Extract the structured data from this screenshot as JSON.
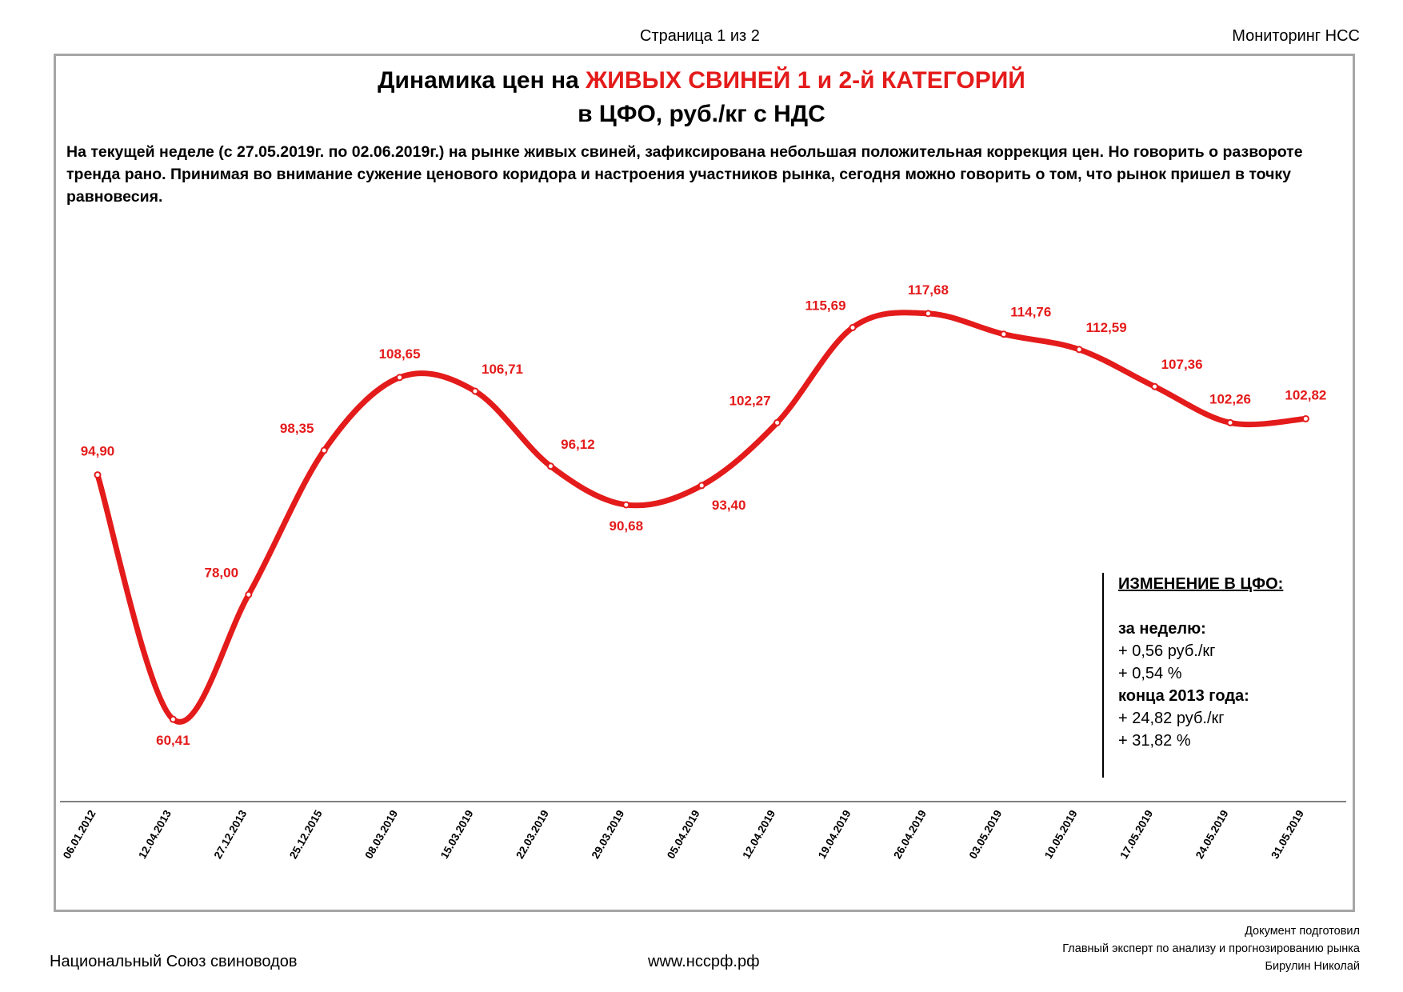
{
  "header": {
    "page_label": "Страница 1 из 2",
    "monitor_label": "Мониторинг НСС"
  },
  "title": {
    "line1_prefix": "Динамика цен на ",
    "line1_highlight": "ЖИВЫХ СВИНЕЙ 1 и 2-й КАТЕГОРИЙ",
    "line2": "в ЦФО, руб./кг с НДС"
  },
  "intro_text": "На текущей неделе (с 27.05.2019г. по 02.06.2019г.) на рынке живых свиней, зафиксирована небольшая положительная коррекция цен. Но говорить о развороте тренда рано. Принимая во внимание сужение ценового коридора и настроения участников рынка, сегодня можно говорить о том, что рынок пришел в точку равновесия.",
  "chart_data": {
    "type": "line",
    "title": "Динамика цен на ЖИВЫХ СВИНЕЙ 1 и 2-й КАТЕГОРИЙ в ЦФО, руб./кг с НДС",
    "xlabel": "",
    "ylabel": "",
    "ylim": [
      55,
      125
    ],
    "grid": false,
    "color": "#e41b1b",
    "categories": [
      "06.01.2012",
      "12.04.2013",
      "27.12.2013",
      "25.12.2015",
      "08.03.2019",
      "15.03.2019",
      "22.03.2019",
      "29.03.2019",
      "05.04.2019",
      "12.04.2019",
      "19.04.2019",
      "26.04.2019",
      "03.05.2019",
      "10.05.2019",
      "17.05.2019",
      "24.05.2019",
      "31.05.2019"
    ],
    "values": [
      94.9,
      60.41,
      78.0,
      98.35,
      108.65,
      106.71,
      96.12,
      90.68,
      93.4,
      102.27,
      115.69,
      117.68,
      114.76,
      112.59,
      107.36,
      102.26,
      102.82
    ],
    "labels": [
      "94,90",
      "60,41",
      "78,00",
      "98,35",
      "108,65",
      "106,71",
      "96,12",
      "90,68",
      "93,40",
      "102,27",
      "115,69",
      "117,68",
      "114,76",
      "112,59",
      "107,36",
      "102,26",
      "102,82"
    ],
    "label_position": [
      "above",
      "below",
      "above-left",
      "above-left",
      "above",
      "above-right",
      "above-right",
      "below",
      "below-right",
      "above-left",
      "above-left",
      "above",
      "above-right",
      "above-right",
      "above-right",
      "above",
      "above"
    ]
  },
  "info_box": {
    "heading": "ИЗМЕНЕНИЕ В ЦФО:",
    "week_label": "за неделю:",
    "week_rub": "+ 0,56 руб./кг",
    "week_pct": "+ 0,54 %",
    "since_label": "конца 2013 года:",
    "since_rub": "+ 24,82 руб./кг",
    "since_pct": "+ 31,82 %"
  },
  "footer": {
    "org": "Национальный Союз свиноводов",
    "site": "www.нссрф.рф",
    "prepared_by": "Документ подготовил",
    "position": "Главный эксперт по анализу и прогнозированию рынка",
    "name": "Бирулин Николай"
  }
}
